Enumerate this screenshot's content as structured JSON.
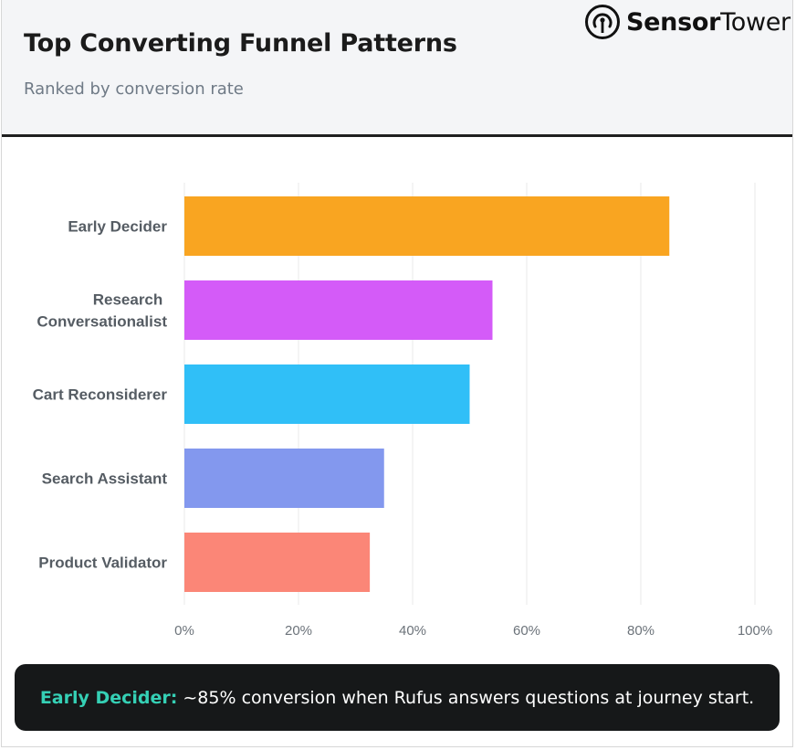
{
  "header": {
    "title": "Top Converting Funnel Patterns",
    "subtitle": "Ranked by conversion rate",
    "brand_bold": "Sensor",
    "brand_light": "Tower",
    "brand_icon": "sensor-tower-logo-icon"
  },
  "chart_data": {
    "type": "bar",
    "orientation": "horizontal",
    "categories": [
      "Early Decider",
      "Research  Conversationalist",
      "Cart Reconsiderer",
      "Search Assistant",
      "Product Validator"
    ],
    "category_lines": [
      [
        "Early Decider"
      ],
      [
        "Research ",
        "Conversationalist"
      ],
      [
        "Cart Reconsiderer"
      ],
      [
        "Search Assistant"
      ],
      [
        "Product Validator"
      ]
    ],
    "values": [
      85,
      54,
      50,
      35,
      32.5
    ],
    "colors": [
      "#f9a521",
      "#d45bf8",
      "#30bff7",
      "#8398ee",
      "#fb8677"
    ],
    "xlim": [
      0,
      100
    ],
    "xticks": [
      0,
      20,
      40,
      60,
      80,
      100
    ],
    "xtick_labels": [
      "0%",
      "20%",
      "40%",
      "60%",
      "80%",
      "100%"
    ],
    "grid": true,
    "legend": "none"
  },
  "callout": {
    "label": "Early Decider:",
    "text": "~85% conversion when Rufus answers questions at journey start."
  }
}
